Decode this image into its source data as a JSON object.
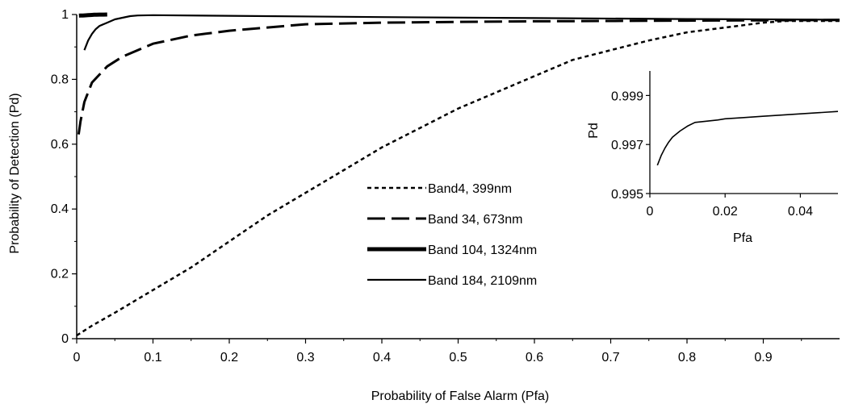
{
  "chart_data": [
    {
      "type": "line",
      "title": "",
      "xlabel": "Probability of False Alarm (Pfa)",
      "ylabel": "Probability of Detection (Pd)",
      "xlim": [
        0,
        1
      ],
      "ylim": [
        0,
        1
      ],
      "xticks": [
        0,
        0.1,
        0.2,
        0.3,
        0.4,
        0.5,
        0.6,
        0.7,
        0.8,
        0.9
      ],
      "xtick_labels": [
        "0",
        "0.1",
        "0.2",
        "0.3",
        "0.4",
        "0.5",
        "0.6",
        "0.7",
        "0.8",
        "0.9"
      ],
      "yticks": [
        0,
        0.2,
        0.4,
        0.6,
        0.8,
        1
      ],
      "ytick_labels": [
        "0",
        "0.2",
        "0.4",
        "0.6",
        "0.8",
        "1"
      ],
      "grid": false,
      "legend_position": "center",
      "series": [
        {
          "name": "Band4, 399nm",
          "style": "dotted",
          "x": [
            0.0,
            0.02,
            0.05,
            0.1,
            0.15,
            0.2,
            0.25,
            0.3,
            0.35,
            0.4,
            0.45,
            0.5,
            0.55,
            0.6,
            0.65,
            0.7,
            0.75,
            0.8,
            0.85,
            0.9,
            0.93,
            0.95,
            1.0
          ],
          "y": [
            0.01,
            0.04,
            0.08,
            0.15,
            0.22,
            0.3,
            0.38,
            0.45,
            0.52,
            0.59,
            0.65,
            0.71,
            0.76,
            0.81,
            0.86,
            0.89,
            0.92,
            0.945,
            0.96,
            0.975,
            0.98,
            0.98,
            0.98
          ]
        },
        {
          "name": "Band 34, 673nm",
          "style": "dashed",
          "x": [
            0.0025,
            0.005,
            0.01,
            0.02,
            0.04,
            0.06,
            0.08,
            0.1,
            0.15,
            0.2,
            0.25,
            0.3,
            0.4,
            0.5,
            0.6,
            0.7,
            0.8,
            0.9,
            1.0
          ],
          "y": [
            0.63,
            0.67,
            0.73,
            0.79,
            0.84,
            0.87,
            0.89,
            0.91,
            0.935,
            0.95,
            0.96,
            0.97,
            0.975,
            0.977,
            0.979,
            0.98,
            0.981,
            0.982,
            0.983
          ]
        },
        {
          "name": "Band 104, 1324nm",
          "style": "thick",
          "x": [
            0.003,
            0.005,
            0.008,
            0.01,
            0.012,
            0.015,
            0.018,
            0.02,
            0.023,
            0.026,
            0.03,
            0.035,
            0.04
          ],
          "y": [
            0.9965,
            0.9968,
            0.997,
            0.9973,
            0.9976,
            0.998,
            0.9984,
            0.9988,
            0.9992,
            0.9995,
            0.9997,
            0.9998,
            1.0
          ]
        },
        {
          "name": "Band 184, 2109nm",
          "style": "solid",
          "x": [
            0.01,
            0.015,
            0.02,
            0.025,
            0.03,
            0.04,
            0.05,
            0.06,
            0.07,
            0.08,
            0.1,
            0.2,
            0.4,
            0.6,
            0.8,
            1.0
          ],
          "y": [
            0.89,
            0.92,
            0.94,
            0.955,
            0.965,
            0.975,
            0.985,
            0.99,
            0.995,
            0.997,
            0.998,
            0.996,
            0.992,
            0.989,
            0.986,
            0.984
          ]
        }
      ]
    },
    {
      "type": "line",
      "title": "",
      "xlabel": "Pfa",
      "ylabel": "Pd",
      "xlim": [
        0,
        0.05
      ],
      "ylim": [
        0.995,
        1.0
      ],
      "xticks": [
        0,
        0.02,
        0.04
      ],
      "xtick_labels": [
        "0",
        "0.02",
        "0.04"
      ],
      "yticks": [
        0.995,
        0.997,
        0.999
      ],
      "ytick_labels": [
        "0.995",
        "0.997",
        "0.999"
      ],
      "grid": false,
      "series": [
        {
          "name": "",
          "x": [
            0.002,
            0.003,
            0.004,
            0.005,
            0.006,
            0.008,
            0.01,
            0.012,
            0.015,
            0.018,
            0.02,
            0.025,
            0.03,
            0.035,
            0.04,
            0.045,
            0.05
          ],
          "y": [
            0.99615,
            0.99655,
            0.99685,
            0.9971,
            0.9973,
            0.99755,
            0.99775,
            0.9979,
            0.99795,
            0.998,
            0.99805,
            0.9981,
            0.99815,
            0.9982,
            0.99825,
            0.9983,
            0.99835
          ]
        }
      ]
    }
  ]
}
